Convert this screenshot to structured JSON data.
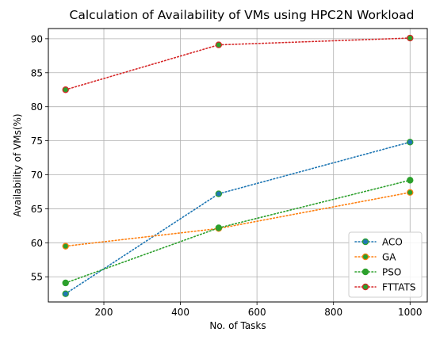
{
  "chart_data": {
    "type": "line",
    "title": "Calculation of Availability of VMs using HPC2N Workload",
    "xlabel": "No. of Tasks",
    "ylabel": "Availability of VMs(%)",
    "x": [
      100,
      500,
      1000
    ],
    "xlim": [
      55,
      1045
    ],
    "ylim": [
      51.3,
      91.5
    ],
    "xticks": [
      200,
      400,
      600,
      800,
      1000
    ],
    "yticks": [
      55,
      60,
      65,
      70,
      75,
      80,
      85,
      90
    ],
    "xtick_labels": [
      "200",
      "400",
      "600",
      "800",
      "1000"
    ],
    "ytick_labels": [
      "55",
      "60",
      "65",
      "70",
      "75",
      "80",
      "85",
      "90"
    ],
    "grid": true,
    "legend_position": "lower-right",
    "line_style": "dotted",
    "series": [
      {
        "name": "ACO",
        "values": [
          52.5,
          67.2,
          74.8
        ],
        "line_color": "#1f77b4",
        "marker_face": "#1f77b4",
        "marker_edge": "#2ca02c"
      },
      {
        "name": "GA",
        "values": [
          59.5,
          62.1,
          67.4
        ],
        "line_color": "#ff7f0e",
        "marker_face": "#2ca02c",
        "marker_edge": "#ff7f0e"
      },
      {
        "name": "PSO",
        "values": [
          54.1,
          62.2,
          69.2
        ],
        "line_color": "#2ca02c",
        "marker_face": "#2ca02c",
        "marker_edge": "#2ca02c"
      },
      {
        "name": "FTTATS",
        "values": [
          82.5,
          89.1,
          90.1
        ],
        "line_color": "#d62728",
        "marker_face": "#2ca02c",
        "marker_edge": "#d62728"
      }
    ]
  }
}
